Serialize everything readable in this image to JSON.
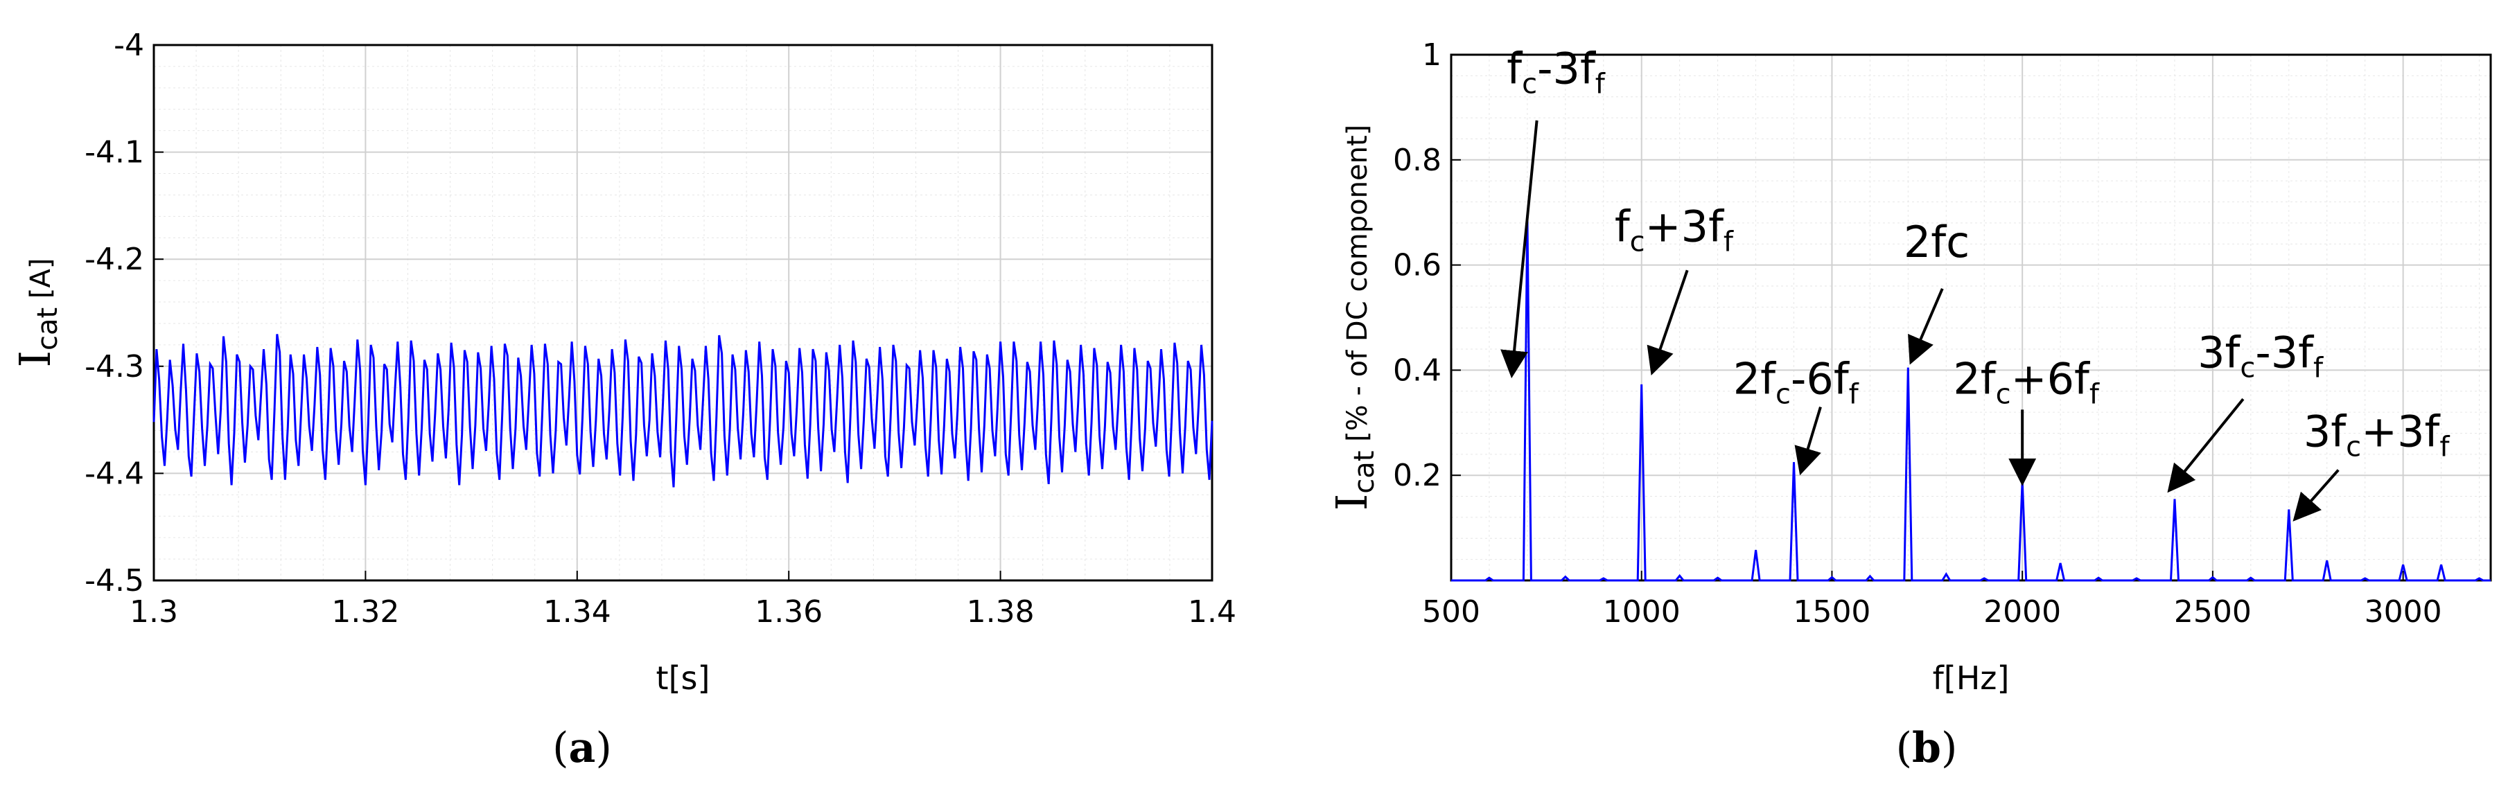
{
  "colors": {
    "line": "#0000ff",
    "grid_major": "#d0d0d0",
    "grid_minor": "#e6e6e6",
    "axis": "#000000",
    "arrow": "#000000"
  },
  "chart_data": [
    {
      "type": "line",
      "panel_label": {
        "open": "(",
        "letter": "a",
        "close": ")"
      },
      "ylabel": {
        "main": "I",
        "sub": "cat",
        "rest": " [A]"
      },
      "xlabel": "t[s]",
      "xlim": [
        1.3,
        1.4
      ],
      "ylim": [
        -4.5,
        -4.0
      ],
      "xticks": [
        1.3,
        1.32,
        1.34,
        1.36,
        1.38,
        1.4
      ],
      "xtick_labels": [
        "1.3",
        "1.32",
        "1.34",
        "1.36",
        "1.38",
        "1.4"
      ],
      "yticks": [
        -4.5,
        -4.4,
        -4.3,
        -4.2,
        -4.1,
        -4.0
      ],
      "ytick_labels": [
        "-4.5",
        "-4.4",
        "-4.3",
        "-4.2",
        "-4.1",
        "-4"
      ],
      "grid": true,
      "series": [
        {
          "x_start": 1.3,
          "x_end": 1.4,
          "samples": 400,
          "values": [
            -4.352,
            -4.284,
            -4.313,
            -4.366,
            -4.393,
            -4.349,
            -4.294,
            -4.318,
            -4.359,
            -4.378,
            -4.324,
            -4.279,
            -4.322,
            -4.384,
            -4.403,
            -4.345,
            -4.288,
            -4.305,
            -4.358,
            -4.393,
            -4.355,
            -4.298,
            -4.302,
            -4.345,
            -4.382,
            -4.34,
            -4.272,
            -4.296,
            -4.372,
            -4.411,
            -4.362,
            -4.289,
            -4.296,
            -4.353,
            -4.39,
            -4.355,
            -4.3,
            -4.303,
            -4.346,
            -4.369,
            -4.327,
            -4.284,
            -4.317,
            -4.387,
            -4.406,
            -4.342,
            -4.27,
            -4.287,
            -4.366,
            -4.406,
            -4.357,
            -4.289,
            -4.307,
            -4.369,
            -4.393,
            -4.342,
            -4.289,
            -4.311,
            -4.356,
            -4.379,
            -4.336,
            -4.282,
            -4.308,
            -4.378,
            -4.406,
            -4.351,
            -4.283,
            -4.3,
            -4.36,
            -4.392,
            -4.354,
            -4.295,
            -4.305,
            -4.356,
            -4.38,
            -4.331,
            -4.275,
            -4.304,
            -4.379,
            -4.411,
            -4.354,
            -4.28,
            -4.292,
            -4.356,
            -4.397,
            -4.361,
            -4.298,
            -4.303,
            -4.354,
            -4.371,
            -4.322,
            -4.277,
            -4.319,
            -4.382,
            -4.406,
            -4.348,
            -4.276,
            -4.295,
            -4.363,
            -4.402,
            -4.357,
            -4.294,
            -4.303,
            -4.363,
            -4.389,
            -4.344,
            -4.288,
            -4.303,
            -4.356,
            -4.386,
            -4.342,
            -4.278,
            -4.301,
            -4.373,
            -4.411,
            -4.364,
            -4.285,
            -4.296,
            -4.357,
            -4.396,
            -4.355,
            -4.287,
            -4.302,
            -4.358,
            -4.379,
            -4.336,
            -4.281,
            -4.312,
            -4.381,
            -4.406,
            -4.347,
            -4.279,
            -4.29,
            -4.358,
            -4.396,
            -4.358,
            -4.292,
            -4.309,
            -4.356,
            -4.378,
            -4.33,
            -4.28,
            -4.307,
            -4.381,
            -4.403,
            -4.344,
            -4.279,
            -4.298,
            -4.364,
            -4.4,
            -4.36,
            -4.296,
            -4.298,
            -4.348,
            -4.374,
            -4.329,
            -4.277,
            -4.314,
            -4.383,
            -4.401,
            -4.348,
            -4.281,
            -4.298,
            -4.361,
            -4.394,
            -4.35,
            -4.293,
            -4.309,
            -4.363,
            -4.387,
            -4.342,
            -4.284,
            -4.306,
            -4.372,
            -4.402,
            -4.347,
            -4.275,
            -4.295,
            -4.37,
            -4.407,
            -4.364,
            -4.291,
            -4.297,
            -4.355,
            -4.384,
            -4.35,
            -4.288,
            -4.309,
            -4.361,
            -4.385,
            -4.336,
            -4.276,
            -4.303,
            -4.38,
            -4.413,
            -4.35,
            -4.281,
            -4.303,
            -4.365,
            -4.392,
            -4.349,
            -4.293,
            -4.304,
            -4.355,
            -4.378,
            -4.331,
            -4.281,
            -4.312,
            -4.381,
            -4.407,
            -4.348,
            -4.271,
            -4.288,
            -4.365,
            -4.402,
            -4.358,
            -4.289,
            -4.303,
            -4.358,
            -4.387,
            -4.344,
            -4.285,
            -4.305,
            -4.363,
            -4.385,
            -4.335,
            -4.277,
            -4.309,
            -4.385,
            -4.406,
            -4.351,
            -4.284,
            -4.3,
            -4.362,
            -4.392,
            -4.357,
            -4.295,
            -4.306,
            -4.363,
            -4.384,
            -4.339,
            -4.283,
            -4.306,
            -4.373,
            -4.405,
            -4.355,
            -4.284,
            -4.295,
            -4.358,
            -4.398,
            -4.354,
            -4.287,
            -4.304,
            -4.359,
            -4.38,
            -4.332,
            -4.28,
            -4.311,
            -4.38,
            -4.409,
            -4.347,
            -4.276,
            -4.296,
            -4.364,
            -4.396,
            -4.351,
            -4.293,
            -4.301,
            -4.349,
            -4.377,
            -4.33,
            -4.282,
            -4.313,
            -4.384,
            -4.403,
            -4.348,
            -4.28,
            -4.295,
            -4.362,
            -4.395,
            -4.357,
            -4.299,
            -4.302,
            -4.352,
            -4.374,
            -4.333,
            -4.285,
            -4.311,
            -4.375,
            -4.403,
            -4.35,
            -4.285,
            -4.301,
            -4.369,
            -4.401,
            -4.355,
            -4.293,
            -4.305,
            -4.363,
            -4.386,
            -4.342,
            -4.282,
            -4.302,
            -4.37,
            -4.407,
            -4.358,
            -4.286,
            -4.294,
            -4.359,
            -4.399,
            -4.355,
            -4.289,
            -4.302,
            -4.36,
            -4.384,
            -4.335,
            -4.277,
            -4.31,
            -4.382,
            -4.402,
            -4.342,
            -4.277,
            -4.295,
            -4.364,
            -4.397,
            -4.353,
            -4.296,
            -4.305,
            -4.355,
            -4.378,
            -4.333,
            -4.277,
            -4.308,
            -4.382,
            -4.41,
            -4.349,
            -4.276,
            -4.298,
            -4.366,
            -4.399,
            -4.355,
            -4.294,
            -4.305,
            -4.354,
            -4.38,
            -4.335,
            -4.28,
            -4.307,
            -4.372,
            -4.402,
            -4.353,
            -4.283,
            -4.299,
            -4.365,
            -4.396,
            -4.356,
            -4.296,
            -4.306,
            -4.356,
            -4.378,
            -4.335,
            -4.28,
            -4.305,
            -4.376,
            -4.406,
            -4.352,
            -4.283,
            -4.303,
            -4.367,
            -4.398,
            -4.358,
            -4.295,
            -4.302,
            -4.353,
            -4.375,
            -4.333,
            -4.284,
            -4.312,
            -4.378,
            -4.403,
            -4.345,
            -4.278,
            -4.297,
            -4.362,
            -4.4,
            -4.356,
            -4.295,
            -4.303,
            -4.357,
            -4.382,
            -4.335,
            -4.28,
            -4.308,
            -4.378,
            -4.406,
            -4.351
          ]
        }
      ]
    },
    {
      "type": "line",
      "panel_label": {
        "open": "(",
        "letter": "b",
        "close": ")"
      },
      "ylabel": {
        "main": "I",
        "sub": "cat",
        "rest": " [% - of DC component]"
      },
      "xlabel": "f[Hz]",
      "xlim": [
        500,
        3230
      ],
      "ylim": [
        0,
        1
      ],
      "xticks": [
        500,
        1000,
        1500,
        2000,
        2500,
        3000
      ],
      "xtick_labels": [
        "500",
        "1000",
        "1500",
        "2000",
        "2500",
        "3000"
      ],
      "yticks": [
        0.2,
        0.4,
        0.6,
        0.8,
        1.0
      ],
      "ytick_labels": [
        "0.2",
        "0.4",
        "0.6",
        "0.8",
        "1"
      ],
      "grid": true,
      "series": [
        {
          "peaks": [
            {
              "x": 600,
              "y": 0.005
            },
            {
              "x": 700,
              "y": 0.695
            },
            {
              "x": 800,
              "y": 0.007
            },
            {
              "x": 900,
              "y": 0.004
            },
            {
              "x": 1000,
              "y": 0.373
            },
            {
              "x": 1100,
              "y": 0.009
            },
            {
              "x": 1200,
              "y": 0.005
            },
            {
              "x": 1300,
              "y": 0.058
            },
            {
              "x": 1400,
              "y": 0.225
            },
            {
              "x": 1500,
              "y": 0.006
            },
            {
              "x": 1600,
              "y": 0.008
            },
            {
              "x": 1700,
              "y": 0.405
            },
            {
              "x": 1800,
              "y": 0.012
            },
            {
              "x": 1900,
              "y": 0.004
            },
            {
              "x": 2000,
              "y": 0.19
            },
            {
              "x": 2100,
              "y": 0.033
            },
            {
              "x": 2200,
              "y": 0.005
            },
            {
              "x": 2300,
              "y": 0.004
            },
            {
              "x": 2400,
              "y": 0.155
            },
            {
              "x": 2500,
              "y": 0.006
            },
            {
              "x": 2600,
              "y": 0.005
            },
            {
              "x": 2700,
              "y": 0.135
            },
            {
              "x": 2800,
              "y": 0.038
            },
            {
              "x": 2900,
              "y": 0.004
            },
            {
              "x": 3000,
              "y": 0.03
            },
            {
              "x": 3100,
              "y": 0.03
            },
            {
              "x": 3200,
              "y": 0.004
            }
          ]
        }
      ],
      "annotations": [
        {
          "id": "fc-3ff",
          "parts": [
            [
              "f",
              ""
            ],
            [
              "c",
              "s"
            ],
            [
              "-3f",
              ""
            ],
            [
              "f",
              "s"
            ]
          ],
          "text_at": [
            775,
            0.945
          ],
          "from": [
            725,
            0.875
          ],
          "to": [
            660,
            0.395
          ]
        },
        {
          "id": "fc+3ff",
          "parts": [
            [
              "f",
              ""
            ],
            [
              "c",
              "s"
            ],
            [
              "+3f",
              ""
            ],
            [
              "f",
              "s"
            ]
          ],
          "text_at": [
            1085,
            0.645
          ],
          "from": [
            1120,
            0.59
          ],
          "to": [
            1030,
            0.4
          ]
        },
        {
          "id": "2fc",
          "parts": [
            [
              "2fc",
              ""
            ]
          ],
          "text_at": [
            1775,
            0.615
          ],
          "from": [
            1790,
            0.555
          ],
          "to": [
            1710,
            0.42
          ]
        },
        {
          "id": "2fc-6ff",
          "parts": [
            [
              "2f",
              ""
            ],
            [
              "c",
              "s"
            ],
            [
              "-6f",
              ""
            ],
            [
              "f",
              "s"
            ]
          ],
          "text_at": [
            1405,
            0.355
          ],
          "from": [
            1470,
            0.33
          ],
          "to": [
            1420,
            0.21
          ]
        },
        {
          "id": "2fc+6ff",
          "parts": [
            [
              "2f",
              ""
            ],
            [
              "c",
              "s"
            ],
            [
              "+6f",
              ""
            ],
            [
              "f",
              "s"
            ]
          ],
          "text_at": [
            2010,
            0.355
          ],
          "from": [
            2000,
            0.325
          ],
          "to": [
            2000,
            0.19
          ]
        },
        {
          "id": "3fc-3ff",
          "parts": [
            [
              "3f",
              ""
            ],
            [
              "c",
              "s"
            ],
            [
              "-3f",
              ""
            ],
            [
              "f",
              "s"
            ]
          ],
          "text_at": [
            2625,
            0.405
          ],
          "from": [
            2580,
            0.345
          ],
          "to": [
            2390,
            0.175
          ]
        },
        {
          "id": "3fc+3ff",
          "parts": [
            [
              "3f",
              ""
            ],
            [
              "c",
              "s"
            ],
            [
              "+3f",
              ""
            ],
            [
              "f",
              "s"
            ]
          ],
          "text_at": [
            2930,
            0.255
          ],
          "from": [
            2830,
            0.21
          ],
          "to": [
            2720,
            0.12
          ]
        }
      ]
    }
  ]
}
